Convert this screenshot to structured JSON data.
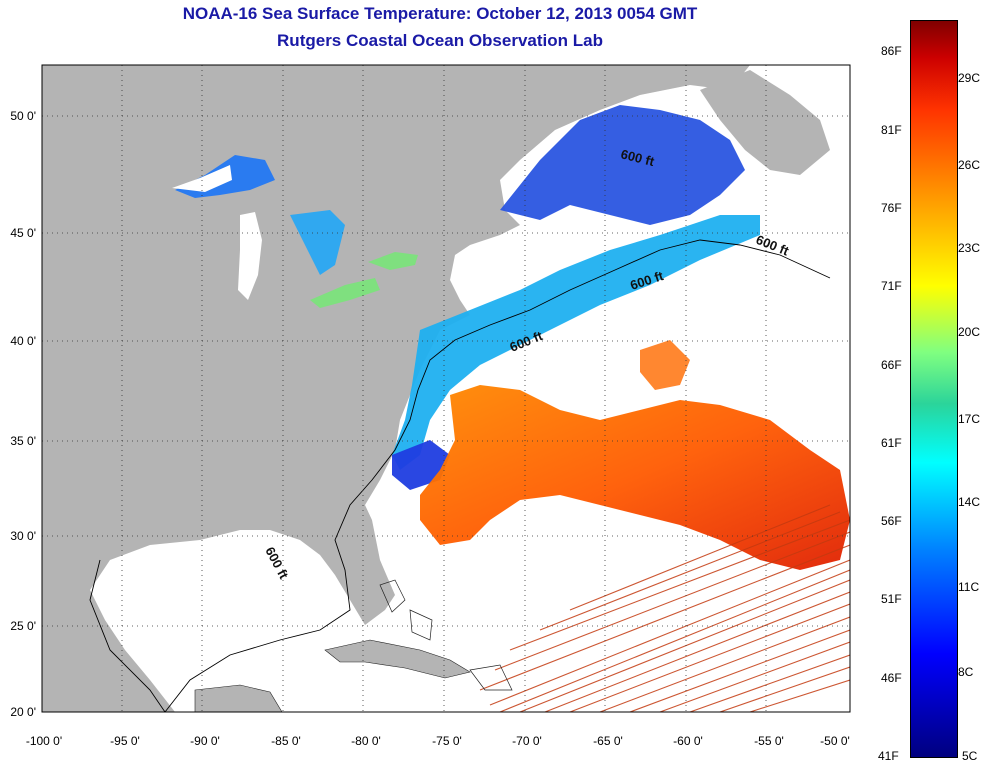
{
  "title": {
    "line1": "NOAA-16 Sea Surface Temperature:  October 12, 2013 0054 GMT",
    "line2": "Rutgers Coastal Ocean Observation Lab"
  },
  "map": {
    "lon_ticks": [
      "-100 0'",
      "-95 0'",
      "-90 0'",
      "-85 0'",
      "-80 0'",
      "-75 0'",
      "-70 0'",
      "-65 0'",
      "-60 0'",
      "-55 0'",
      "-50 0'"
    ],
    "lat_ticks": [
      "20 0'",
      "25 0'",
      "30 0'",
      "35 0'",
      "40 0'",
      "45 0'",
      "50 0'"
    ],
    "contour_label": "600 ft",
    "colors": {
      "land": "#b4b4b4",
      "no_data": "#ffffff"
    }
  },
  "colorbar": {
    "fahrenheit": [
      "86F",
      "81F",
      "76F",
      "71F",
      "66F",
      "61F",
      "56F",
      "51F",
      "46F",
      "41F"
    ],
    "celsius": [
      "29C",
      "26C",
      "23C",
      "20C",
      "17C",
      "14C",
      "11C",
      "8C",
      "5C"
    ]
  }
}
